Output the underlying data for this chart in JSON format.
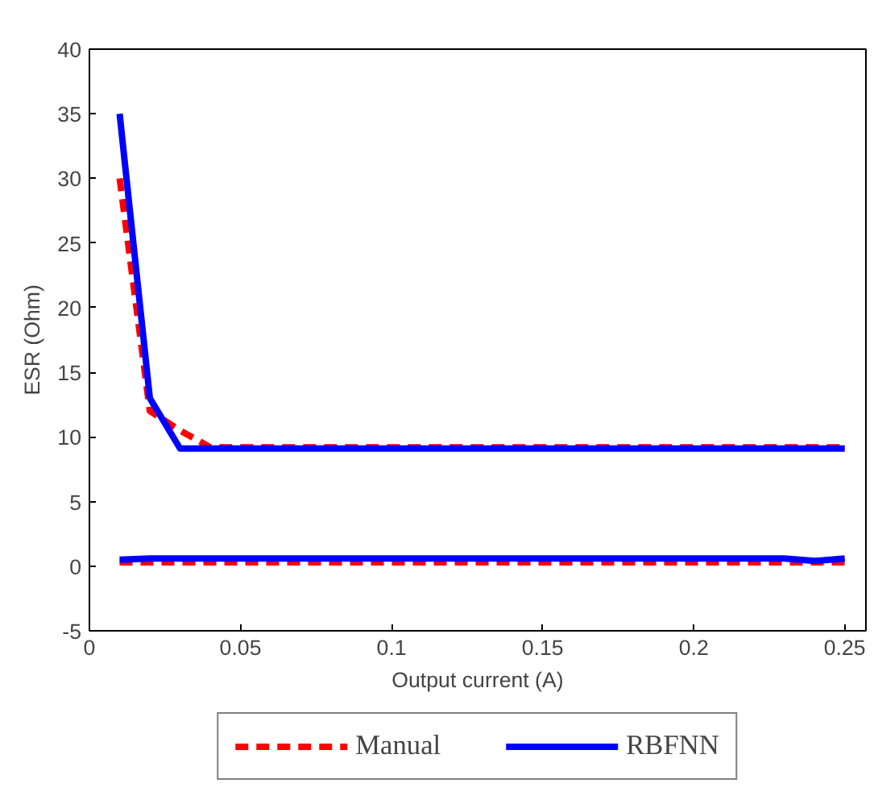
{
  "chart_data": {
    "type": "line",
    "xlabel": "Output current (A)",
    "ylabel": "ESR (Ohm)",
    "xlim": [
      0,
      0.257
    ],
    "ylim": [
      -5,
      40
    ],
    "xticks": [
      0,
      0.05,
      0.1,
      0.15,
      0.2,
      0.25
    ],
    "yticks": [
      -5,
      0,
      5,
      10,
      15,
      20,
      25,
      30,
      35,
      40
    ],
    "grid": false,
    "legend": "bottom",
    "line_style": "solid",
    "series": [
      {
        "name": "Manual",
        "color": "#ff0000",
        "line_style": "dashed",
        "x": [
          0.01,
          0.02,
          0.03,
          0.04,
          0.25
        ],
        "values": [
          30,
          12,
          10.5,
          9.2,
          9.2
        ]
      },
      {
        "name": "RBFNN",
        "color": "#0000ff",
        "x": [
          0.01,
          0.02,
          0.03,
          0.04,
          0.25
        ],
        "values": [
          35,
          13,
          9.1,
          9.1,
          9.1
        ]
      },
      {
        "color": "#ff0000",
        "line_style": "dashed",
        "x": [
          0.01,
          0.02,
          0.24,
          0.25
        ],
        "values": [
          0.3,
          0.3,
          0.3,
          0.3
        ]
      },
      {
        "color": "#0000ff",
        "x": [
          0.01,
          0.02,
          0.23,
          0.24,
          0.25
        ],
        "values": [
          0.5,
          0.6,
          0.6,
          0.4,
          0.6
        ]
      }
    ]
  }
}
